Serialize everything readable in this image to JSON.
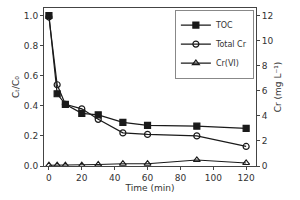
{
  "chart_data": {
    "type": "line",
    "xlabel": "Time (min)",
    "ylabel": "Cₜ/C₀",
    "y2label": "Cr (mg L⁻¹)",
    "x": [
      0,
      5,
      10,
      20,
      30,
      45,
      60,
      90,
      120
    ],
    "series": [
      {
        "name": "TOC",
        "color": "#1a1a1a",
        "marker": "square",
        "values": [
          1.0,
          0.48,
          0.41,
          0.35,
          0.34,
          0.29,
          0.27,
          0.265,
          0.25
        ]
      },
      {
        "name": "Total Cr",
        "color": "#1a1a1a",
        "marker": "circle-open",
        "values": [
          0.99,
          0.54,
          0.41,
          0.38,
          0.31,
          0.22,
          0.21,
          0.2,
          0.13
        ]
      },
      {
        "name": "Cr(VI)",
        "color": "#1a1a1a",
        "marker": "triangle-up-open",
        "values": [
          0.005,
          0.005,
          0.005,
          0.005,
          0.01,
          0.015,
          0.015,
          0.04,
          0.02
        ]
      }
    ],
    "xlim": [
      -3,
      126
    ],
    "xticks": [
      0,
      20,
      40,
      60,
      80,
      100,
      120
    ],
    "ylim": [
      0.0,
      1.05
    ],
    "yticks": [
      {
        "value": 0.0,
        "label": "0.0"
      },
      0.2,
      0.4,
      0.6,
      0.8,
      {
        "value": 1.0,
        "label": "1.0"
      }
    ],
    "y2lim": [
      0,
      12.6
    ],
    "y2ticks": [
      0,
      2,
      4,
      6,
      8,
      10,
      12
    ],
    "grid": false,
    "legend": "upper right"
  }
}
